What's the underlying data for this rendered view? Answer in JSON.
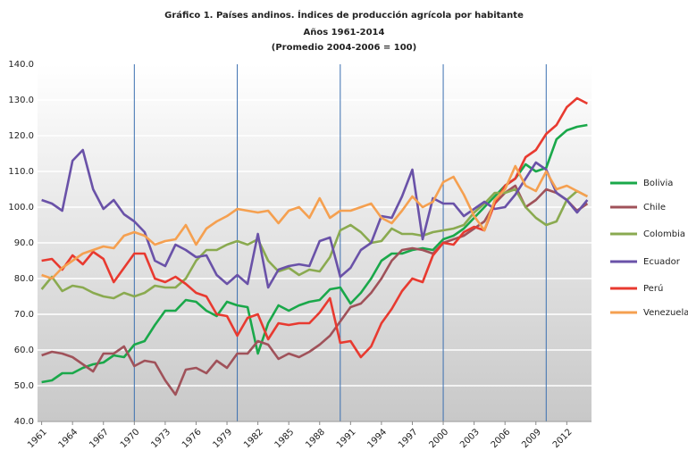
{
  "chart_data": {
    "type": "line",
    "title": "Gráfico 1. Países andinos. Índices de producción agrícola por habitante",
    "subtitle": "Años 1961-2014",
    "note": "(Promedio 2004-2006 = 100)",
    "x": [
      1961,
      1962,
      1963,
      1964,
      1965,
      1966,
      1967,
      1968,
      1969,
      1970,
      1971,
      1972,
      1973,
      1974,
      1975,
      1976,
      1977,
      1978,
      1979,
      1980,
      1981,
      1982,
      1983,
      1984,
      1985,
      1986,
      1987,
      1988,
      1989,
      1990,
      1991,
      1992,
      1993,
      1994,
      1995,
      1996,
      1997,
      1998,
      1999,
      2000,
      2001,
      2002,
      2003,
      2004,
      2005,
      2006,
      2007,
      2008,
      2009,
      2010,
      2011,
      2012,
      2013,
      2014
    ],
    "series": [
      {
        "name": "Bolivia",
        "color": "#1aa84a",
        "values": [
          51,
          51.5,
          53.5,
          53.5,
          55,
          56,
          56.5,
          58.5,
          58,
          61.5,
          62.5,
          67,
          71,
          71,
          74,
          73.5,
          71,
          69.5,
          73.5,
          72.5,
          72,
          59,
          67.5,
          72.5,
          71,
          72.5,
          73.5,
          74,
          77,
          77.5,
          73,
          76,
          80,
          85,
          87,
          87,
          88,
          88.5,
          88,
          91,
          92,
          94,
          97,
          100,
          103,
          106,
          108,
          112,
          110,
          111,
          119,
          121.5,
          122.5,
          123
        ]
      },
      {
        "name": "Chile",
        "color": "#a0525a",
        "values": [
          58.5,
          59.5,
          59,
          58,
          56,
          54,
          59,
          59,
          61,
          55.5,
          57,
          56.5,
          51.5,
          47.5,
          54.5,
          55,
          53.5,
          57,
          55,
          59,
          59,
          62.5,
          61.5,
          57.5,
          59,
          58,
          59.5,
          61.5,
          64,
          68,
          72,
          73,
          76,
          80,
          85,
          88,
          88.5,
          88,
          87,
          90,
          91,
          92,
          94,
          96,
          101,
          104,
          106,
          100,
          102,
          105,
          104,
          102,
          99,
          101
        ]
      },
      {
        "name": "Colombia",
        "color": "#8aaa50",
        "values": [
          77,
          80.5,
          76.5,
          78,
          77.5,
          76,
          75,
          74.5,
          76,
          75,
          76,
          78,
          77.5,
          77.5,
          80,
          85,
          88,
          88,
          89.5,
          90.5,
          89.5,
          91,
          85,
          82,
          83,
          81,
          82.5,
          82,
          86,
          93.5,
          95,
          93,
          90,
          90.5,
          94,
          92.5,
          92.5,
          92,
          93,
          93.5,
          94,
          95,
          98.5,
          101,
          104,
          104,
          105,
          100,
          97,
          95,
          96,
          102,
          104.5,
          103
        ]
      },
      {
        "name": "Ecuador",
        "color": "#6a52a8",
        "values": [
          102,
          101,
          99,
          113,
          116,
          105,
          99.5,
          102,
          98,
          96,
          93,
          85,
          83.5,
          89.5,
          88,
          86,
          86.5,
          81,
          78.5,
          81,
          78.5,
          92.5,
          77.5,
          82.5,
          83.5,
          84,
          83.5,
          90.5,
          91.5,
          80.5,
          83,
          88,
          90,
          97.5,
          97,
          103,
          110.5,
          91,
          102.5,
          101,
          101,
          97.5,
          99.5,
          101.5,
          99.5,
          100,
          103.5,
          108,
          112.5,
          110.5,
          104,
          102,
          98.5,
          102
        ]
      },
      {
        "name": "Perú",
        "color": "#e83a30",
        "values": [
          85,
          85.5,
          82.5,
          86.5,
          84,
          87.5,
          85.5,
          79,
          83,
          87,
          87,
          80,
          79,
          80.5,
          78.5,
          76,
          75,
          70,
          69.5,
          64,
          69,
          70,
          63,
          67.5,
          67,
          67.5,
          67.5,
          70.5,
          74.5,
          62,
          62.5,
          58,
          61,
          67.5,
          71.5,
          76.5,
          80,
          79,
          86.5,
          90,
          89.5,
          93,
          94.5,
          93.5,
          101,
          106,
          108,
          114,
          116,
          120.5,
          123,
          128,
          130.5,
          129
        ]
      },
      {
        "name": "Venezuela",
        "color": "#f5a050",
        "values": [
          81,
          80,
          83,
          85,
          87,
          88,
          89,
          88.5,
          92,
          93,
          92,
          89.5,
          90.5,
          91,
          95,
          89.5,
          94,
          96,
          97.5,
          99.5,
          99,
          98.5,
          99,
          95.5,
          99,
          100,
          97,
          102.5,
          97,
          99,
          99,
          100,
          101,
          97,
          95.5,
          99,
          103,
          100,
          101.5,
          107,
          108.5,
          103.5,
          97.5,
          93.5,
          102,
          105,
          111.5,
          106,
          104.5,
          110,
          105,
          106,
          104.5,
          103
        ]
      }
    ],
    "xlim": [
      1960.6,
      2014.4
    ],
    "xticks": [
      1961,
      1964,
      1967,
      1970,
      1973,
      1976,
      1979,
      1982,
      1985,
      1988,
      1991,
      1994,
      1997,
      2000,
      2003,
      2006,
      2009,
      2012
    ],
    "ylim": [
      40,
      140
    ],
    "yticks": [
      {
        "value": 40,
        "label": "40.0"
      },
      {
        "value": 50,
        "label": "50.0"
      },
      {
        "value": 60,
        "label": "60.0"
      },
      {
        "value": 70,
        "label": "70.0"
      },
      {
        "value": 80,
        "label": "80.0"
      },
      {
        "value": 90,
        "label": "90.0"
      },
      {
        "value": 100,
        "label": "100.0"
      },
      {
        "value": 110,
        "label": "110.0"
      },
      {
        "value": 120,
        "label": "120.0"
      },
      {
        "value": 130,
        "label": "130.0"
      },
      {
        "value": 140,
        "label": "140.0"
      }
    ],
    "reference_lines": [
      1970,
      1980,
      1990,
      2000,
      2010
    ],
    "grid": true,
    "legend": "right"
  }
}
